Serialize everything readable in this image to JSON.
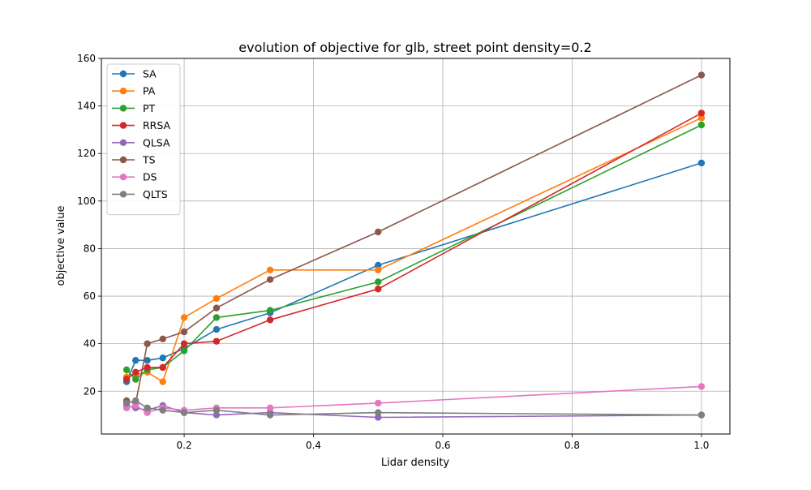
{
  "chart_data": {
    "type": "line",
    "title": "evolution of objective for glb, street point density=0.2",
    "xlabel": "Lidar density",
    "ylabel": "objective value",
    "xlim": [
      0.072,
      1.044
    ],
    "ylim": [
      2,
      160
    ],
    "xticks": [
      0.2,
      0.4,
      0.6,
      0.8,
      1.0
    ],
    "xtick_labels": [
      "0.2",
      "0.4",
      "0.6",
      "0.8",
      "1.0"
    ],
    "yticks": [
      20,
      40,
      60,
      80,
      100,
      120,
      140,
      160
    ],
    "ytick_labels": [
      "20",
      "40",
      "60",
      "80",
      "100",
      "120",
      "140",
      "160"
    ],
    "grid": true,
    "legend_position": "top-left",
    "x": [
      0.111,
      0.125,
      0.143,
      0.167,
      0.2,
      0.25,
      0.333,
      0.5,
      1.0
    ],
    "series": [
      {
        "name": "SA",
        "color": "#1f77b4",
        "values": [
          24,
          33,
          33,
          34,
          38,
          46,
          53,
          73,
          116
        ]
      },
      {
        "name": "PA",
        "color": "#ff7f0e",
        "values": [
          26,
          27,
          28,
          24,
          51,
          59,
          71,
          71,
          135
        ]
      },
      {
        "name": "PT",
        "color": "#2ca02c",
        "values": [
          29,
          25,
          29,
          30,
          37,
          51,
          54,
          66,
          132
        ]
      },
      {
        "name": "RRSA",
        "color": "#d62728",
        "values": [
          25,
          28,
          30,
          30,
          40,
          41,
          50,
          63,
          137
        ]
      },
      {
        "name": "QLSA",
        "color": "#9467bd",
        "values": [
          14,
          13,
          12,
          14,
          11,
          10,
          11,
          9,
          10
        ]
      },
      {
        "name": "TS",
        "color": "#8c564b",
        "values": [
          16,
          15,
          40,
          42,
          45,
          55,
          67,
          87,
          153
        ]
      },
      {
        "name": "DS",
        "color": "#e377c2",
        "values": [
          13,
          14,
          11,
          13,
          12,
          13,
          13,
          15,
          22
        ]
      },
      {
        "name": "QLTS",
        "color": "#7f7f7f",
        "values": [
          15,
          16,
          13,
          12,
          11,
          12,
          10,
          11,
          10
        ]
      }
    ]
  }
}
